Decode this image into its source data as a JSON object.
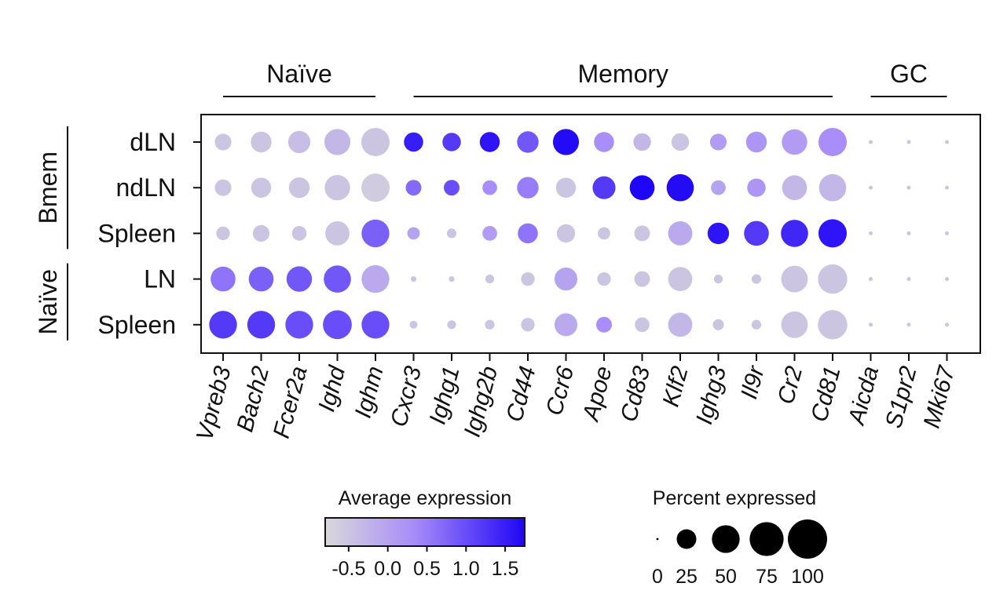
{
  "chart_data": {
    "type": "dotplot",
    "column_groups": [
      {
        "label": "Naïve",
        "from": 0,
        "to": 4
      },
      {
        "label": "Memory",
        "from": 5,
        "to": 16
      },
      {
        "label": "GC",
        "from": 17,
        "to": 19
      }
    ],
    "row_groups": [
      {
        "label": "Bmem",
        "from": 0,
        "to": 2
      },
      {
        "label": "Naïve",
        "from": 3,
        "to": 4
      }
    ],
    "genes": [
      "Vpreb3",
      "Bach2",
      "Fcer2a",
      "Ighd",
      "Ighm",
      "Cxcr3",
      "Ighg1",
      "Ighg2b",
      "Cd44",
      "Ccr6",
      "Apoe",
      "Cd83",
      "Klf2",
      "Ighg3",
      "Il9r",
      "Cr2",
      "Cd81",
      "Aicda",
      "S1pr2",
      "Mki67"
    ],
    "rows": [
      "dLN",
      "ndLN",
      "Spleen",
      "LN",
      "Spleen"
    ],
    "percent_expressed": [
      [
        18,
        28,
        32,
        44,
        52,
        24,
        22,
        26,
        30,
        44,
        26,
        20,
        20,
        18,
        28,
        42,
        52,
        1,
        1,
        1
      ],
      [
        18,
        26,
        28,
        42,
        52,
        16,
        16,
        14,
        30,
        26,
        34,
        40,
        48,
        14,
        22,
        40,
        48,
        1,
        1,
        1
      ],
      [
        12,
        18,
        14,
        38,
        50,
        10,
        6,
        14,
        26,
        22,
        10,
        16,
        38,
        30,
        40,
        48,
        52,
        1,
        1,
        1
      ],
      [
        40,
        40,
        42,
        48,
        50,
        2,
        2,
        5,
        12,
        34,
        12,
        16,
        38,
        5,
        6,
        46,
        56,
        1,
        1,
        1
      ],
      [
        50,
        50,
        50,
        54,
        50,
        4,
        5,
        6,
        12,
        34,
        16,
        14,
        38,
        8,
        6,
        46,
        56,
        1,
        1,
        1
      ]
    ],
    "average_expression": [
      [
        -0.5,
        -0.5,
        -0.4,
        -0.3,
        -0.5,
        1.5,
        1.2,
        1.6,
        0.9,
        1.7,
        0.3,
        -0.3,
        -0.5,
        0.1,
        0.2,
        0.1,
        0.3,
        -0.5,
        -0.5,
        -0.5
      ],
      [
        -0.5,
        -0.5,
        -0.5,
        -0.5,
        -0.6,
        0.7,
        1.0,
        0.3,
        0.5,
        -0.5,
        1.2,
        1.8,
        1.7,
        0.0,
        0.2,
        -0.3,
        -0.3,
        -0.5,
        -0.5,
        -0.5
      ],
      [
        -0.5,
        -0.5,
        -0.5,
        -0.5,
        0.8,
        0.0,
        -0.5,
        0.1,
        0.6,
        -0.5,
        -0.5,
        -0.5,
        -0.1,
        1.6,
        1.2,
        1.4,
        1.6,
        -0.5,
        -0.5,
        -0.5
      ],
      [
        0.6,
        0.8,
        0.9,
        0.9,
        -0.1,
        -0.5,
        -0.5,
        -0.5,
        -0.5,
        0.0,
        -0.5,
        -0.5,
        -0.5,
        -0.5,
        -0.5,
        -0.5,
        -0.5,
        -0.5,
        -0.5,
        -0.5
      ],
      [
        1.2,
        1.2,
        1.0,
        1.0,
        1.0,
        -0.5,
        -0.5,
        -0.5,
        -0.5,
        -0.1,
        0.3,
        -0.5,
        -0.3,
        -0.5,
        -0.5,
        -0.5,
        -0.5,
        -0.5,
        -0.5,
        -0.5
      ]
    ],
    "color_scale": {
      "title": "Average expression",
      "low_color": "#d9d9d9",
      "mid_color": "#a78bfa",
      "high_color": "#1f06f5",
      "domain": [
        -0.8,
        1.75
      ],
      "ticks": [
        "-0.5",
        "0.0",
        "0.5",
        "1.0",
        "1.5"
      ]
    },
    "size_scale": {
      "title": "Percent expressed",
      "ticks": [
        "0",
        "25",
        "50",
        "75",
        "100"
      ]
    }
  }
}
